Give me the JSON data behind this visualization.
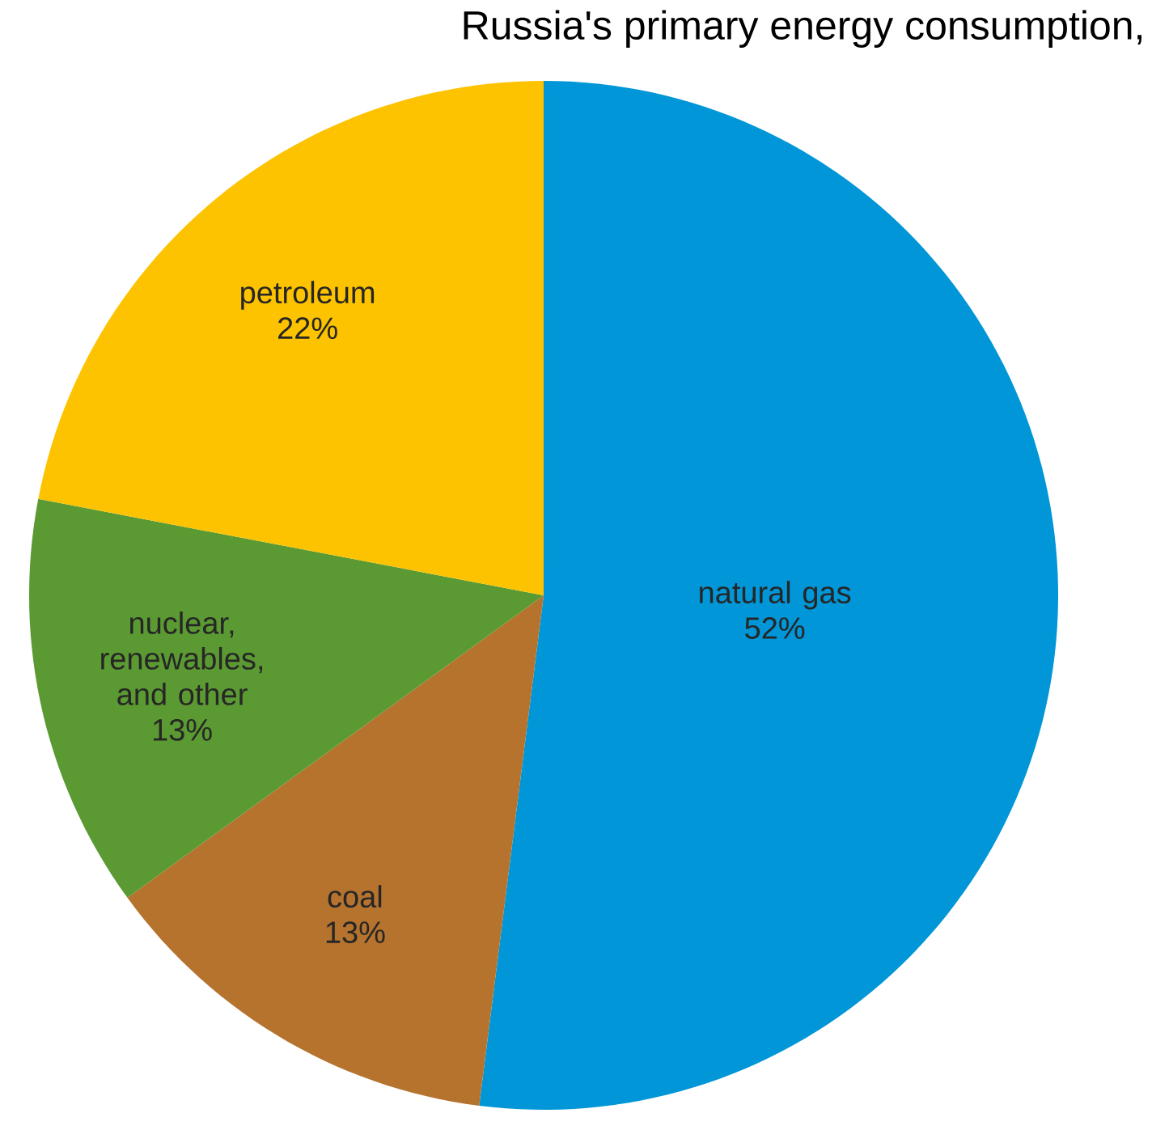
{
  "chart_data": {
    "type": "pie",
    "title": "Russia's primary energy consumption,",
    "categories": [
      "natural gas",
      "coal",
      "nuclear, renewables, and other",
      "petroleum"
    ],
    "values": [
      52,
      13,
      13,
      22
    ],
    "value_labels": [
      "52%",
      "13%",
      "13%",
      "22%"
    ],
    "colors": [
      "#0096d7",
      "#b5732e",
      "#5b9a32",
      "#fdc300"
    ]
  }
}
